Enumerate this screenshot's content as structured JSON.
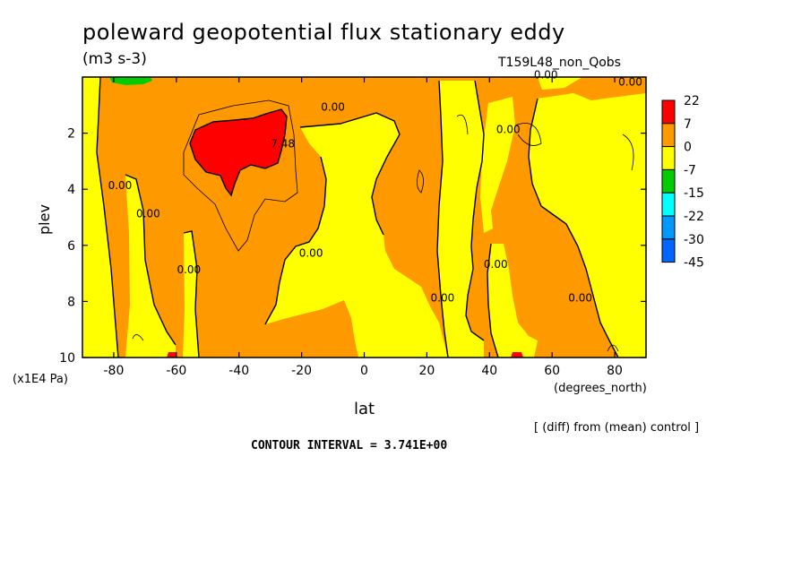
{
  "chart_data": {
    "type": "heatmap",
    "title": "poleward geopotential flux stationary eddy",
    "units": "(m3 s-3)",
    "run_label": "T159L48_non_Qobs",
    "xlabel": "lat",
    "x_units": "(degrees_north)",
    "ylabel": "plev",
    "y_units": "(x1E4 Pa)",
    "xlim": [
      -90,
      90
    ],
    "ylim": [
      10,
      0
    ],
    "x_ticks": [
      -80,
      -60,
      -40,
      -20,
      0,
      20,
      40,
      60,
      80
    ],
    "x_tick_labels": [
      "-80",
      "-60",
      "-40",
      "-20",
      "0",
      "20",
      "40",
      "60",
      "80"
    ],
    "y_ticks": [
      2,
      4,
      6,
      8,
      10
    ],
    "y_tick_labels": [
      "2",
      "4",
      "6",
      "8",
      "10"
    ],
    "colorbar": {
      "labels": [
        "22",
        "7",
        "0",
        "-7",
        "-15",
        "-22",
        "-30",
        "-45"
      ],
      "colors": [
        "#ff0000",
        "#ff9900",
        "#ffff00",
        "#00cc00",
        "#00ffff",
        "#0099ff",
        "#0066ff"
      ]
    },
    "contour_labels": [
      {
        "text": "0.00",
        "lat": -10,
        "plev": 1.2
      },
      {
        "text": "0.00",
        "lat": 85,
        "plev": 0.3
      },
      {
        "text": "0.00",
        "lat": 58,
        "plev": 0.05
      },
      {
        "text": "7.48",
        "lat": -26,
        "plev": 2.5
      },
      {
        "text": "0.00",
        "lat": -78,
        "plev": 4.0
      },
      {
        "text": "0.00",
        "lat": -69,
        "plev": 5.0
      },
      {
        "text": "0.00",
        "lat": -17,
        "plev": 6.4
      },
      {
        "text": "0.00",
        "lat": -56,
        "plev": 7.0
      },
      {
        "text": "0.00",
        "lat": 42,
        "plev": 6.8
      },
      {
        "text": "0.00",
        "lat": 25,
        "plev": 8.0
      },
      {
        "text": "0.00",
        "lat": 69,
        "plev": 8.0
      },
      {
        "text": "0.00",
        "lat": 46,
        "plev": 2.0
      }
    ],
    "grid": false,
    "legend": "right"
  },
  "annotation_diff": "[ (diff) from (mean) control ]",
  "contour_interval": "CONTOUR INTERVAL = 3.741E+00"
}
